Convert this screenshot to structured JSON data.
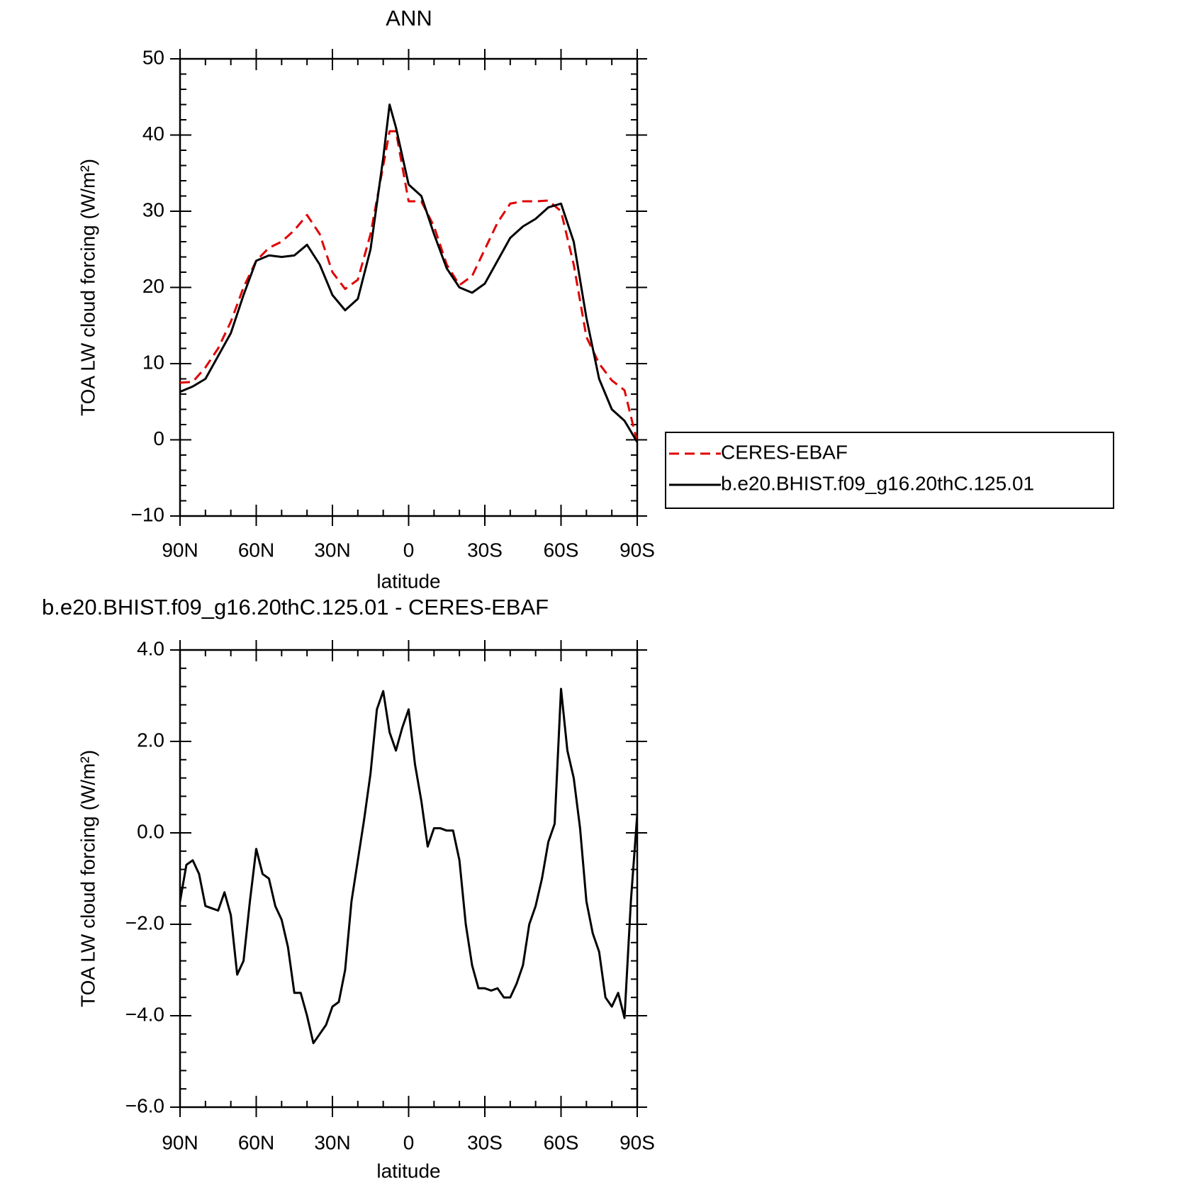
{
  "chart_data": [
    {
      "type": "line",
      "title": "ANN",
      "xlabel": "latitude",
      "ylabel": "TOA LW cloud forcing (W/m²)",
      "x": [
        90,
        85,
        80,
        75,
        70,
        65,
        60,
        55,
        50,
        45,
        40,
        35,
        30,
        25,
        20,
        15,
        10,
        7.5,
        5,
        0,
        -5,
        -10,
        -15,
        -20,
        -25,
        -30,
        -35,
        -40,
        -45,
        -50,
        -55,
        -60,
        -65,
        -70,
        -75,
        -80,
        -85,
        -90
      ],
      "series": [
        {
          "name": "CERES-EBAF",
          "color": "#e00000",
          "dashed": true,
          "values": [
            7.5,
            7.6,
            9.5,
            12,
            15.5,
            20,
            23.5,
            25.2,
            26,
            27.5,
            29.5,
            27,
            22,
            19.8,
            21,
            27,
            36,
            40.5,
            40.5,
            31.3,
            31.3,
            28,
            23,
            20.3,
            21.5,
            25,
            28.5,
            31,
            31.3,
            31.3,
            31.4,
            30,
            23,
            13.5,
            10,
            7.8,
            6.5,
            -0.3
          ]
        },
        {
          "name": "b.e20.BHIST.f09_g16.20thC.125.01",
          "color": "#000000",
          "dashed": false,
          "values": [
            6.3,
            7,
            8,
            11,
            14,
            19,
            23.5,
            24.2,
            24,
            24.2,
            25.6,
            23,
            19,
            17,
            18.5,
            25,
            37,
            44,
            41,
            33.5,
            32,
            27,
            22.5,
            20,
            19.3,
            20.5,
            23.5,
            26.5,
            28,
            29,
            30.5,
            31,
            26,
            16,
            8,
            4,
            2.5,
            -0.3
          ]
        }
      ],
      "xlim": [
        90,
        -90
      ],
      "xticks": [
        {
          "value": 90,
          "label": "90N"
        },
        {
          "value": 60,
          "label": "60N"
        },
        {
          "value": 30,
          "label": "30N"
        },
        0,
        {
          "value": -30,
          "label": "30S"
        },
        {
          "value": -60,
          "label": "60S"
        },
        {
          "value": -90,
          "label": "90S"
        }
      ],
      "ylim": [
        -10,
        50
      ],
      "yticks": [
        {
          "value": -10,
          "label": "−10"
        },
        0,
        10,
        20,
        30,
        40,
        50
      ],
      "legend": "outside-right"
    },
    {
      "type": "line",
      "title": "b.e20.BHIST.f09_g16.20thC.125.01 - CERES-EBAF",
      "xlabel": "latitude",
      "ylabel": "TOA LW cloud forcing (W/m²)",
      "x": [
        90,
        87.5,
        85,
        82.5,
        80,
        77.5,
        75,
        72.5,
        70,
        67.5,
        65,
        62.5,
        60,
        57.5,
        55,
        52.5,
        50,
        47.5,
        45,
        42.5,
        40,
        37.5,
        35,
        32.5,
        30,
        27.5,
        25,
        22.5,
        20,
        17.5,
        15,
        12.5,
        10,
        7.5,
        5,
        2.5,
        0,
        -2.5,
        -5,
        -7.5,
        -10,
        -12.5,
        -15,
        -17.5,
        -20,
        -22.5,
        -25,
        -27.5,
        -30,
        -32.5,
        -35,
        -37.5,
        -40,
        -42.5,
        -45,
        -47.5,
        -50,
        -52.5,
        -55,
        -57.5,
        -60,
        -62.5,
        -65,
        -67.5,
        -70,
        -72.5,
        -75,
        -77.5,
        -80,
        -82.5,
        -85,
        -87.5,
        -90
      ],
      "values": [
        -1.5,
        -0.7,
        -0.6,
        -0.9,
        -1.6,
        -1.65,
        -1.7,
        -1.3,
        -1.8,
        -3.1,
        -2.8,
        -1.5,
        -0.35,
        -0.9,
        -1.0,
        -1.6,
        -1.9,
        -2.5,
        -3.5,
        -3.5,
        -4.0,
        -4.6,
        -4.4,
        -4.2,
        -3.8,
        -3.7,
        -3.0,
        -1.5,
        -0.6,
        0.3,
        1.3,
        2.7,
        3.1,
        2.2,
        1.8,
        2.3,
        2.7,
        1.5,
        0.7,
        -0.3,
        0.1,
        0.1,
        0.05,
        0.05,
        -0.6,
        -2.0,
        -2.9,
        -3.4,
        -3.4,
        -3.45,
        -3.4,
        -3.6,
        -3.6,
        -3.3,
        -2.9,
        -2.0,
        -1.6,
        -1.0,
        -0.2,
        0.2,
        3.15,
        1.8,
        1.2,
        0.1,
        -1.5,
        -2.2,
        -2.6,
        -3.6,
        -3.8,
        -3.5,
        -4.05,
        -1.5,
        0.4
      ],
      "color": "#000000",
      "xlim": [
        90,
        -90
      ],
      "xticks": [
        {
          "value": 90,
          "label": "90N"
        },
        {
          "value": 60,
          "label": "60N"
        },
        {
          "value": 30,
          "label": "30N"
        },
        0,
        {
          "value": -30,
          "label": "30S"
        },
        {
          "value": -60,
          "label": "60S"
        },
        {
          "value": -90,
          "label": "90S"
        }
      ],
      "ylim": [
        -6,
        4
      ],
      "yticks": [
        {
          "value": -6,
          "label": "−6.0"
        },
        {
          "value": -4,
          "label": "−4.0"
        },
        {
          "value": -2,
          "label": "−2.0"
        },
        {
          "value": 0,
          "label": "0.0"
        },
        {
          "value": 2,
          "label": "2.0"
        },
        {
          "value": 4,
          "label": "4.0"
        }
      ]
    }
  ]
}
